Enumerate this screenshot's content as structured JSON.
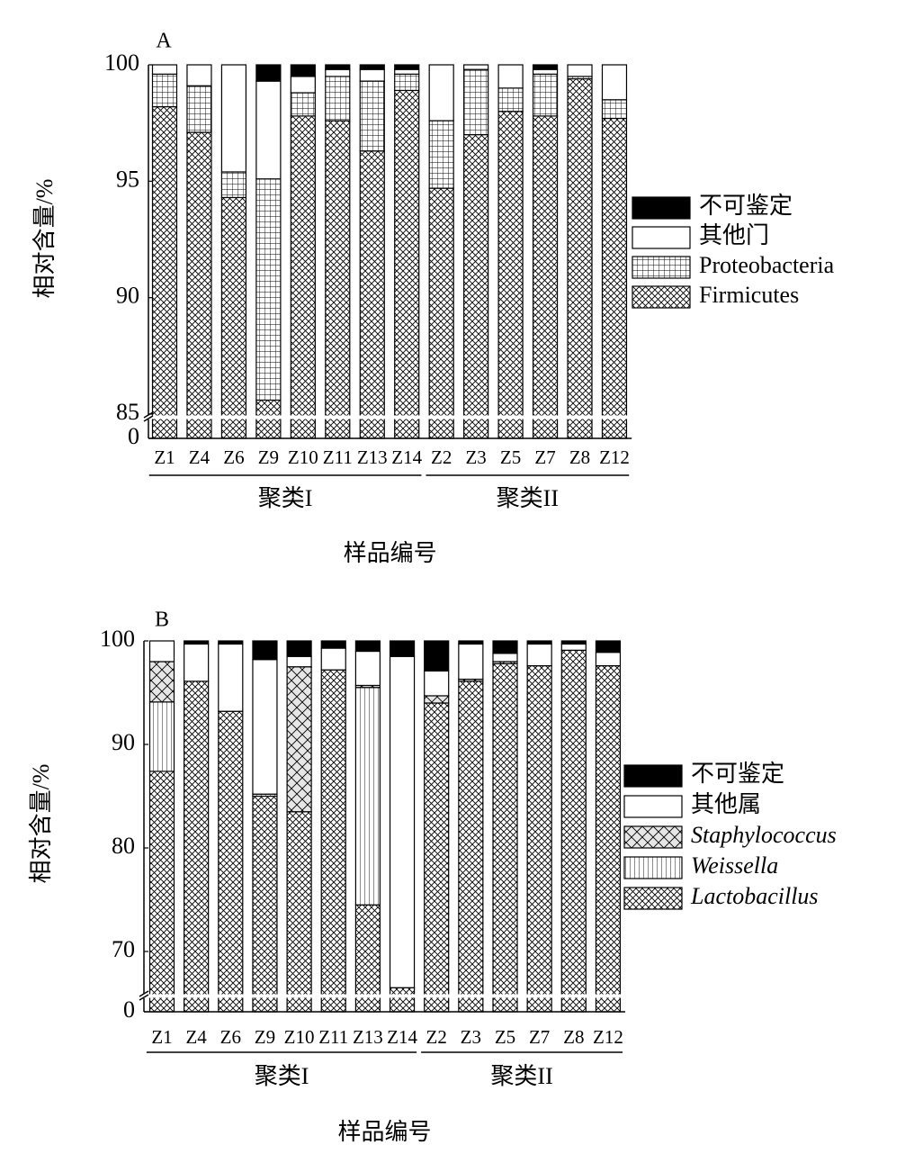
{
  "chart_data": [
    {
      "type": "stacked-bar",
      "panel": "A",
      "ylabel": "相对含量/%",
      "xlabel": "样品编号",
      "categories": [
        "Z1",
        "Z4",
        "Z6",
        "Z9",
        "Z10",
        "Z11",
        "Z13",
        "Z14",
        "Z2",
        "Z3",
        "Z5",
        "Z7",
        "Z8",
        "Z12"
      ],
      "groups": [
        {
          "label": "聚类I",
          "size": 8
        },
        {
          "label": "聚类II",
          "size": 6
        }
      ],
      "ylim": [
        0,
        100
      ],
      "ybreak": [
        0,
        85
      ],
      "yticks": [
        0,
        85,
        90,
        95,
        100
      ],
      "series": [
        {
          "name": "Firmicutes",
          "color": "#ffffff",
          "pattern": "crosshatch",
          "values": [
            98.2,
            97.1,
            94.3,
            85.6,
            97.8,
            97.6,
            96.3,
            98.9,
            94.7,
            97.0,
            98.0,
            97.8,
            99.4,
            97.7
          ]
        },
        {
          "name": "Proteobacteria",
          "color": "#ffffff",
          "pattern": "grid",
          "values": [
            1.4,
            2.0,
            1.1,
            9.5,
            1.0,
            1.9,
            3.0,
            0.7,
            2.9,
            2.8,
            1.0,
            1.8,
            0.1,
            0.8
          ]
        },
        {
          "name": "其他门",
          "color": "#ffffff",
          "pattern": "none",
          "values": [
            0.4,
            0.9,
            4.6,
            4.2,
            0.7,
            0.3,
            0.5,
            0.2,
            2.4,
            0.2,
            1.0,
            0.2,
            0.5,
            1.5
          ]
        },
        {
          "name": "不可鉴定",
          "color": "#000000",
          "pattern": "none",
          "values": [
            0,
            0,
            0,
            0.7,
            0.5,
            0.2,
            0.2,
            0.2,
            0,
            0,
            0,
            0.2,
            0,
            0
          ]
        }
      ]
    },
    {
      "type": "stacked-bar",
      "panel": "B",
      "ylabel": "相对含量/%",
      "xlabel": "样品编号",
      "categories": [
        "Z1",
        "Z4",
        "Z6",
        "Z9",
        "Z10",
        "Z11",
        "Z13",
        "Z14",
        "Z2",
        "Z3",
        "Z5",
        "Z7",
        "Z8",
        "Z12"
      ],
      "groups": [
        {
          "label": "聚类I",
          "size": 8
        },
        {
          "label": "聚类II",
          "size": 6
        }
      ],
      "ylim": [
        0,
        100
      ],
      "ybreak": [
        0,
        66
      ],
      "yticks": [
        0,
        70,
        80,
        90,
        100
      ],
      "series": [
        {
          "name": "Lactobacillus",
          "italic": true,
          "color": "#ffffff",
          "pattern": "crosshatch",
          "values": [
            87.4,
            96.1,
            93.2,
            85.0,
            83.5,
            97.2,
            74.5,
            66.5,
            94.0,
            96.1,
            97.8,
            97.6,
            99.1,
            97.6
          ]
        },
        {
          "name": "Weissella",
          "italic": true,
          "color": "#ffffff",
          "pattern": "vlines",
          "values": [
            6.7,
            0,
            0,
            0.2,
            0,
            0,
            21.0,
            0,
            0,
            0,
            0,
            0,
            0,
            0
          ]
        },
        {
          "name": "Staphylococcus",
          "italic": true,
          "color": "#e6e6e6",
          "pattern": "wide-cross",
          "values": [
            3.9,
            0,
            0,
            0,
            14.0,
            0,
            0.2,
            0,
            0.7,
            0.2,
            0.2,
            0,
            0,
            0
          ]
        },
        {
          "name": "其他属",
          "color": "#ffffff",
          "pattern": "none",
          "values": [
            2.0,
            3.6,
            6.5,
            13.0,
            1.0,
            2.1,
            3.3,
            32.0,
            2.4,
            3.4,
            0.8,
            2.1,
            0.6,
            1.3
          ]
        },
        {
          "name": "不可鉴定",
          "color": "#000000",
          "pattern": "none",
          "values": [
            0,
            0.3,
            0.3,
            1.8,
            1.5,
            0.7,
            1.0,
            1.5,
            2.9,
            0.3,
            1.2,
            0.3,
            0.3,
            1.1
          ]
        }
      ]
    }
  ]
}
